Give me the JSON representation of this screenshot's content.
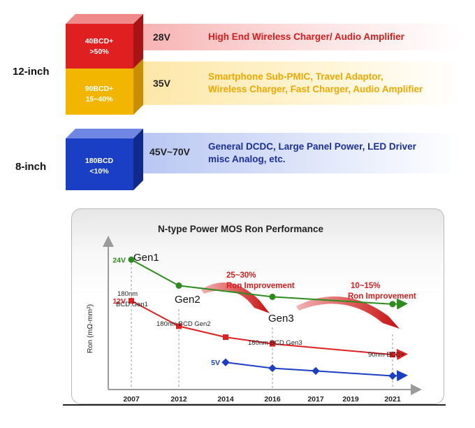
{
  "header": {
    "wafer_12": "12-inch",
    "wafer_8": "8-inch"
  },
  "tiers": [
    {
      "node": "40BCD+",
      "share": ">50%",
      "voltage": "28V",
      "apps": [
        "High End Wireless Charger/ Audio Amplifier"
      ],
      "color": "#e02020",
      "text_color": "#d81c1c"
    },
    {
      "node": "90BCD+",
      "share": "15~40%",
      "voltage": "35V",
      "apps": [
        "Smartphone Sub-PMIC, Travel Adaptor,",
        "Wireless Charger, Fast Charger, Audio Amplifier"
      ],
      "color": "#f2b600",
      "text_color": "#f0a800"
    },
    {
      "node": "180BCD",
      "share": "<10%",
      "voltage": "45V~70V",
      "apps": [
        "General DCDC, Large Panel Power, LED Driver",
        "misc Analog, etc."
      ],
      "color": "#1b3fc4",
      "text_color": "#1a2f9c"
    }
  ],
  "chart_data": {
    "type": "line",
    "title": "N-type Power MOS Ron Performance",
    "ylabel": "Ron (mΩ-mm²)",
    "xlabel": "",
    "categories": [
      "2007",
      "2012",
      "2014",
      "2016",
      "2017",
      "2019",
      "2021"
    ],
    "series": [
      {
        "name": "24V",
        "color": "#2e8b1e",
        "points": [
          [
            0,
            24.0
          ],
          [
            1,
            16.0
          ],
          [
            3,
            13.0
          ],
          [
            6,
            11.2
          ]
        ]
      },
      {
        "name": "12V",
        "color": "#e02020",
        "points": [
          [
            0,
            12.0
          ],
          [
            1,
            6.5
          ],
          [
            2,
            4.6
          ],
          [
            3,
            3.6
          ],
          [
            6,
            2.2
          ]
        ]
      },
      {
        "name": "5V",
        "color": "#1b3fc4",
        "points": [
          [
            2,
            1.4
          ],
          [
            3,
            0.9
          ],
          [
            4,
            0.7
          ],
          [
            6,
            0.4
          ]
        ]
      }
    ],
    "ylim": [
      0,
      30
    ],
    "grid": false,
    "legend": "none",
    "annotations": {
      "gen1": "Gen1",
      "gen2": "Gen2",
      "gen3": "Gen3",
      "gen1_node": [
        "180nm",
        "BCD Gen1"
      ],
      "gen2_node": "180nm BCD Gen2",
      "gen3_node": "180nm BCD Gen3",
      "last_node": "90nm BCD+",
      "improve1": [
        "25~30%",
        "Ron Improvement"
      ],
      "improve2": [
        "10~15%",
        "Ron Improvement"
      ]
    }
  }
}
